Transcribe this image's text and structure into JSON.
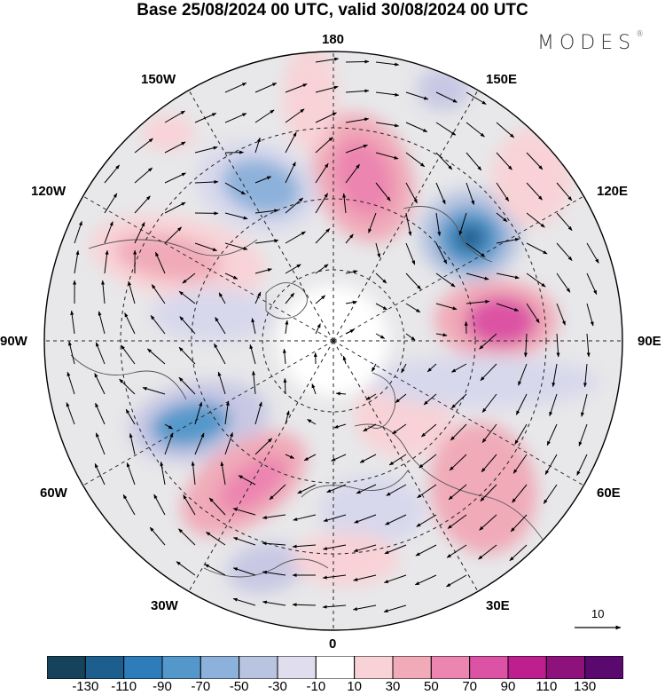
{
  "title": "Base 25/08/2024 00 UTC, valid 30/08/2024 00 UTC",
  "brand": {
    "name": "MODES",
    "mark": "®"
  },
  "longitude_labels": {
    "top": "180",
    "bottom": "0",
    "left": "90W",
    "right": "90E",
    "upper_left_1": "150W",
    "upper_left_2": "120W",
    "upper_right_1": "150E",
    "upper_right_2": "120E",
    "lower_left_1": "60W",
    "lower_left_2": "30W",
    "lower_right_1": "60E",
    "lower_right_2": "30E"
  },
  "reference_vector": {
    "value": "10"
  },
  "colorbar": {
    "colors": [
      "#16425b",
      "#1c5f8f",
      "#2e7dba",
      "#5498cb",
      "#8cb1da",
      "#b8c4e0",
      "#e0ddee",
      "#ffffff",
      "#f8d2d6",
      "#f0aab8",
      "#ec85b0",
      "#dc52a4",
      "#bd1f8f",
      "#8e127c",
      "#5a0a6e"
    ],
    "tick_labels": [
      "-130",
      "-110",
      "-90",
      "-70",
      "-50",
      "-30",
      "-10",
      "10",
      "30",
      "50",
      "70",
      "90",
      "110",
      "130"
    ]
  }
}
